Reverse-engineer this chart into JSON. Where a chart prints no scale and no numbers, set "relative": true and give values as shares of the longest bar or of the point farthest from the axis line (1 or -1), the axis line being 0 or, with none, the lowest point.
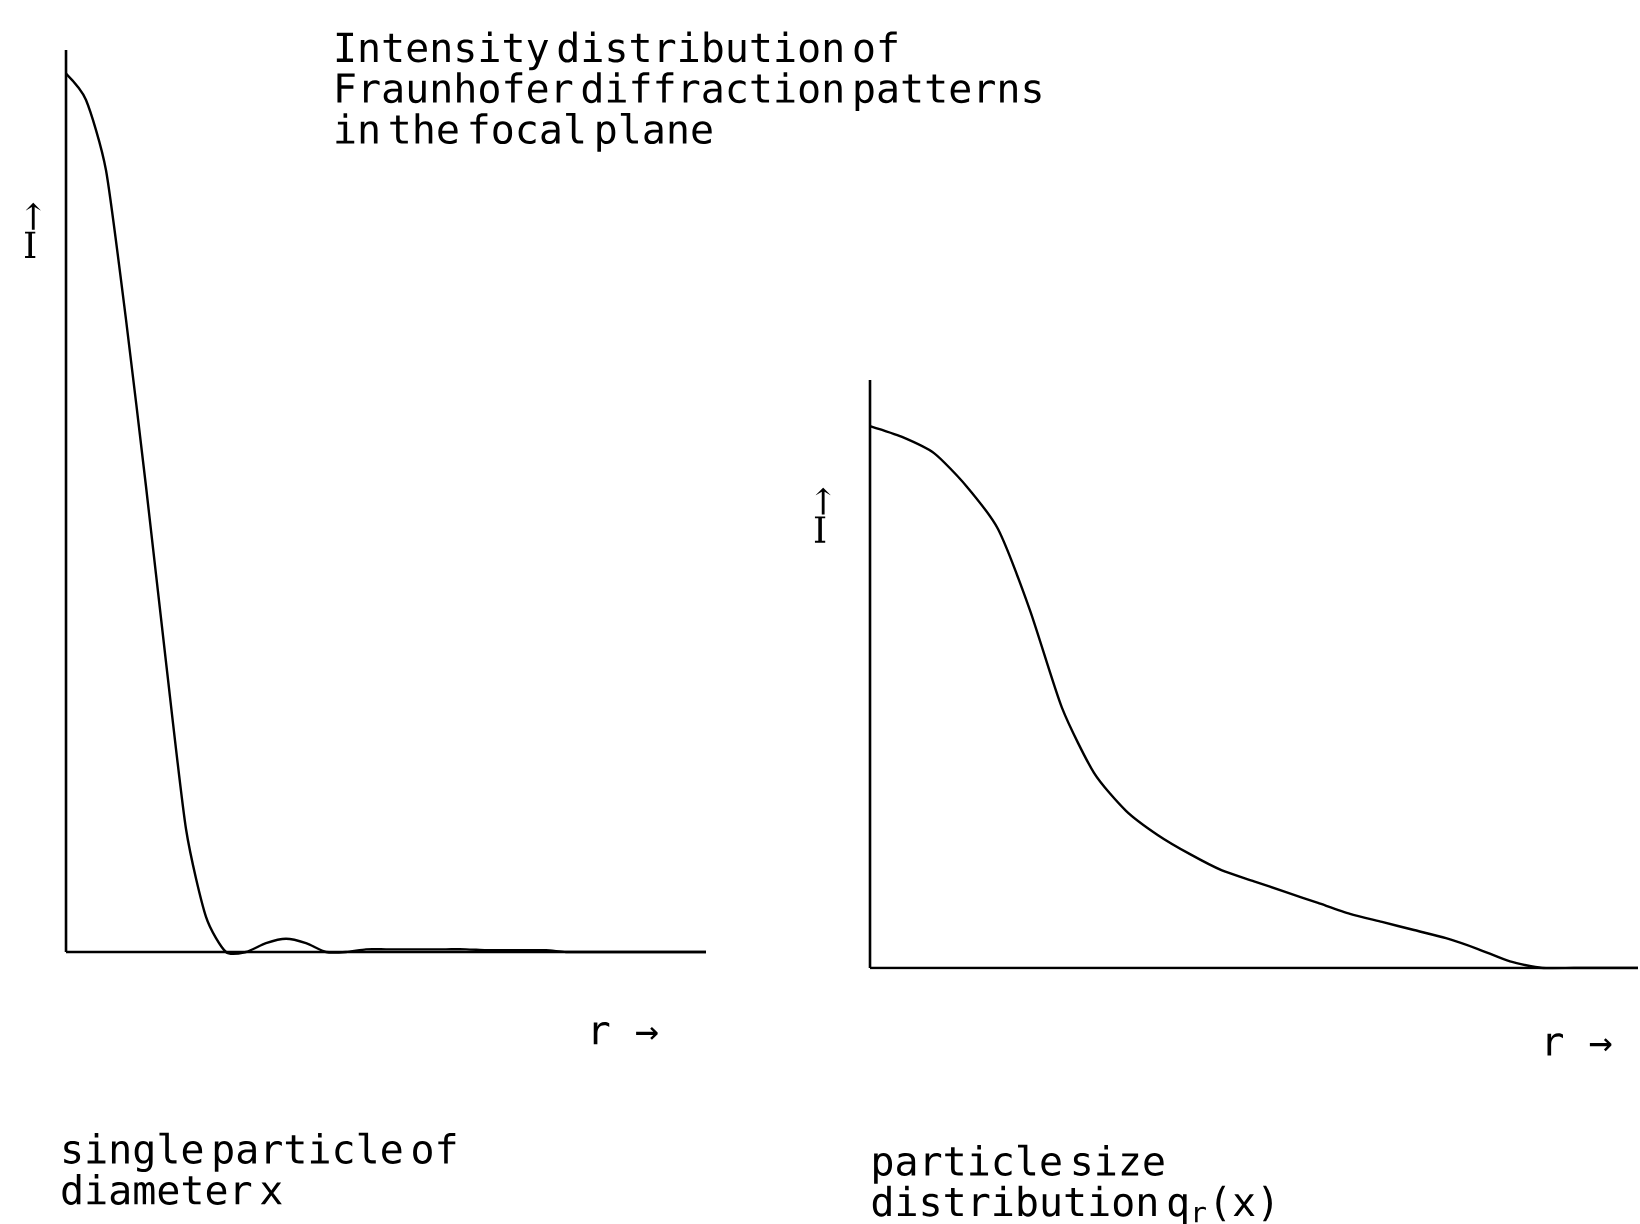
{
  "chart_data": [
    {
      "type": "line",
      "relative": true,
      "title": "Intensity distribution of Fraunhofer diffraction patterns in the focal plane",
      "xlabel": "r →",
      "ylabel": "↑ I",
      "color": "#000000",
      "categories": [
        null,
        null,
        null,
        null,
        null,
        null,
        null,
        null,
        null,
        null,
        null,
        null,
        null,
        null,
        null,
        null,
        null,
        null,
        null,
        null,
        null,
        null,
        null,
        null,
        null,
        null,
        null,
        null,
        null,
        null,
        null,
        null,
        null
      ],
      "values": [
        1.0,
        0.97,
        0.89,
        0.72,
        0.53,
        0.33,
        0.14,
        0.04,
        0.0,
        0.0,
        0.01,
        0.015,
        0.01,
        0.0,
        0.0,
        0.003,
        0.003,
        0.003,
        0.003,
        0.003,
        0.003,
        0.002,
        0.002,
        0.002,
        0.002,
        0.0,
        0.0,
        0.0,
        0.0,
        0.0,
        0.0,
        0.0,
        0.0
      ],
      "annotations": [
        "single particle of diameter x"
      ]
    },
    {
      "type": "line",
      "relative": true,
      "xlabel": "r →",
      "ylabel": "↑ I",
      "color": "#000000",
      "categories": [
        null,
        null,
        null,
        null,
        null,
        null,
        null,
        null,
        null,
        null,
        null,
        null,
        null,
        null,
        null,
        null,
        null,
        null,
        null,
        null,
        null,
        null,
        null,
        null,
        null
      ],
      "values": [
        1.0,
        0.98,
        0.95,
        0.89,
        0.81,
        0.66,
        0.48,
        0.36,
        0.29,
        0.245,
        0.21,
        0.18,
        0.16,
        0.14,
        0.12,
        0.1,
        0.085,
        0.07,
        0.055,
        0.035,
        0.012,
        0.0,
        0.0,
        0.0,
        0.0
      ],
      "annotations": [
        "particle size distribution q$_{r}$(x)"
      ]
    }
  ]
}
